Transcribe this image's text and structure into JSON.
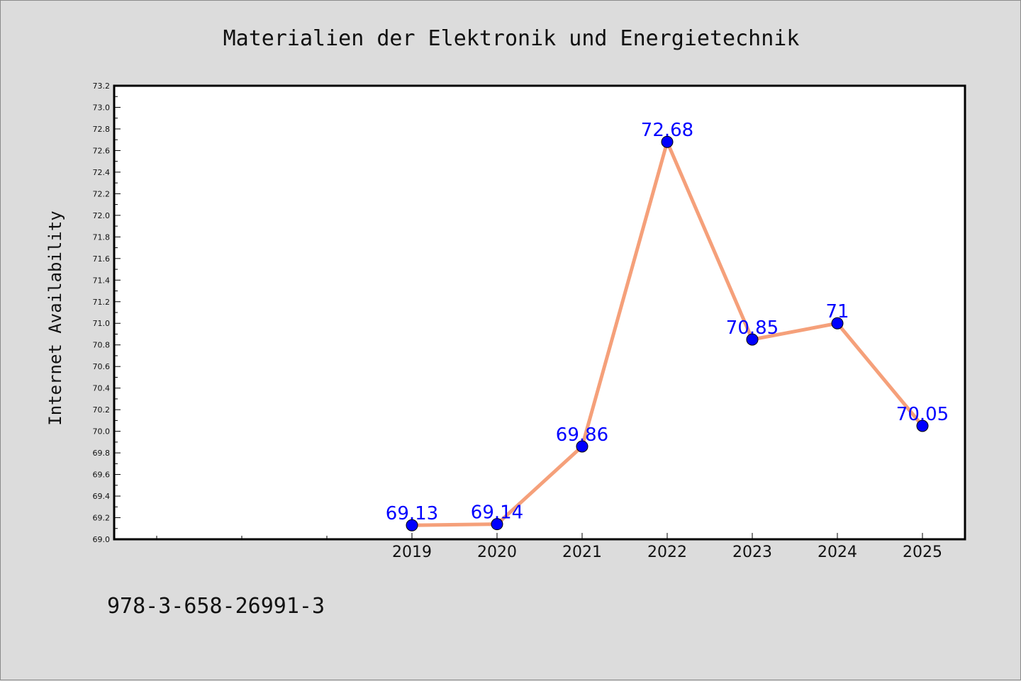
{
  "chart_data": {
    "type": "line",
    "title": "Materialien der Elektronik und Energietechnik",
    "xlabel": "",
    "ylabel": "Internet Availability",
    "categories": [
      "2019",
      "2020",
      "2021",
      "2022",
      "2023",
      "2024",
      "2025"
    ],
    "series": [
      {
        "values": [
          69.13,
          69.14,
          69.86,
          72.68,
          70.85,
          71.0,
          70.05
        ],
        "labels": [
          "69.13",
          "69.14",
          "69.86",
          "72.68",
          "70.85",
          "71",
          "70.05"
        ],
        "line_color": "#f5a07a",
        "marker_color": "#0000ff"
      }
    ],
    "ylim": [
      69.0,
      73.2
    ],
    "yticks": [
      "69.0",
      "69.2",
      "69.4",
      "69.6",
      "69.8",
      "70.0",
      "70.2",
      "70.4",
      "70.6",
      "70.8",
      "71.0",
      "71.2",
      "71.4",
      "71.6",
      "71.8",
      "72.0",
      "72.2",
      "72.4",
      "72.6",
      "72.8",
      "73.0",
      "73.2"
    ],
    "grid": false,
    "legend": "none"
  },
  "footer": {
    "text": "978-3-658-26991-3"
  },
  "colors": {
    "background": "#dcdcdc",
    "plot_background": "#ffffff",
    "label_color": "#0000ff"
  }
}
